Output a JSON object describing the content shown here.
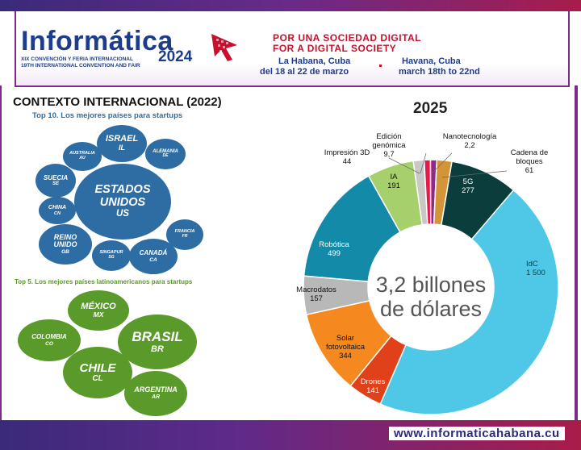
{
  "header": {
    "logo_title": "Informática",
    "logo_year": "2024",
    "logo_sub1": "XIX CONVENCIÓN Y FERIA INTERNACIONAL",
    "logo_sub2": "19TH INTERNATIONAL CONVENTION AND FAIR",
    "slogan_es": "POR UNA SOCIEDAD DIGITAL",
    "slogan_en": "FOR A DIGITAL SOCIETY",
    "city_es": "La Habana, Cuba",
    "city_en": "Havana, Cuba",
    "dates_es": "del 18 al 22 de marzo",
    "dates_en": "march 18th to 22nd"
  },
  "left": {
    "title": "CONTEXTO INTERNACIONAL (2022)",
    "top10_title": "Top 10. Los mejores países para startups",
    "top10": [
      {
        "name": "ESTADOS UNIDOS",
        "code": "US"
      },
      {
        "name": "ISRAEL",
        "code": "IL"
      },
      {
        "name": "AUSTRALIA",
        "code": "AU"
      },
      {
        "name": "ALEMANIA",
        "code": "DE"
      },
      {
        "name": "SUECIA",
        "code": "SE"
      },
      {
        "name": "CHINA",
        "code": "CN"
      },
      {
        "name": "REINO UNIDO",
        "code": "GB"
      },
      {
        "name": "SINGAPUR",
        "code": "SG"
      },
      {
        "name": "CANADÁ",
        "code": "CA"
      },
      {
        "name": "FRANCIA",
        "code": "FR"
      }
    ],
    "top5_title": "Top 5. Los mejores países latinoamericanos para startups",
    "top5": [
      {
        "name": "MÉXICO",
        "code": "MX"
      },
      {
        "name": "BRASIL",
        "code": "BR"
      },
      {
        "name": "COLOMBIA",
        "code": "CO"
      },
      {
        "name": "CHILE",
        "code": "CL"
      },
      {
        "name": "ARGENTINA",
        "code": "AR"
      }
    ],
    "colors": {
      "top10": "#2e6da4",
      "top5": "#5a9a2a"
    }
  },
  "chart_data": {
    "type": "pie",
    "title": "2025",
    "center_label": [
      "3,2 billones",
      "de dólares"
    ],
    "series": [
      {
        "name": "IdC",
        "value_label": "1 500",
        "value": 1500,
        "color": "#4fc8e8"
      },
      {
        "name": "Drones",
        "value_label": "141",
        "value": 141,
        "color": "#e0401a"
      },
      {
        "name": "Solar fotovoltaica",
        "value_label": "344",
        "value": 344,
        "color": "#f5891f"
      },
      {
        "name": "Macrodatos",
        "value_label": "157",
        "value": 157,
        "color": "#b8b8b8"
      },
      {
        "name": "Robótica",
        "value_label": "499",
        "value": 499,
        "color": "#138aa8"
      },
      {
        "name": "IA",
        "value_label": "191",
        "value": 191,
        "color": "#a6d06b"
      },
      {
        "name": "Impresión 3D",
        "value_label": "44",
        "value": 44,
        "color": "#c8c8c8"
      },
      {
        "name": "Edición genómica",
        "value_label": "9,7",
        "value": 9.7,
        "color": "#e6194b"
      },
      {
        "name": "Nanotecnología",
        "value_label": "2,2",
        "value": 2.2,
        "color": "#8a2a8a"
      },
      {
        "name": "Cadena de bloques",
        "value_label": "61",
        "value": 61,
        "color": "#d4953a"
      },
      {
        "name": "5G",
        "value_label": "277",
        "value": 277,
        "color": "#0b3d3d"
      }
    ]
  },
  "footer": {
    "url": "www.informaticahabana.cu"
  }
}
